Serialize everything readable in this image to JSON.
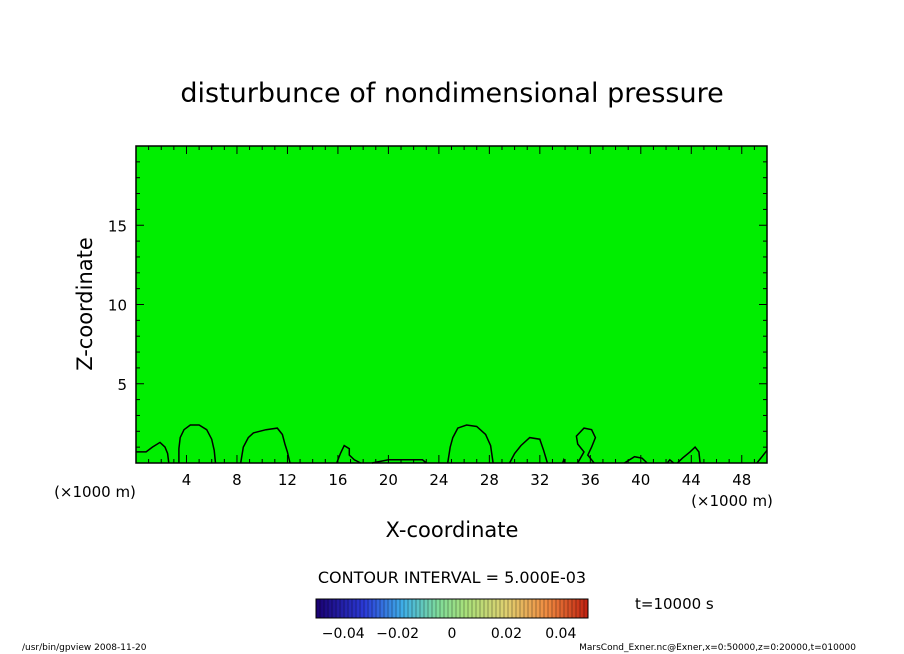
{
  "chart_data": {
    "type": "contour",
    "title": "disturbunce of nondimensional pressure",
    "xlabel": "X-coordinate",
    "ylabel": "Z-coordinate",
    "x_unit": "(×1000 m)",
    "y_unit": "(×1000 m)",
    "xlim": [
      0,
      50
    ],
    "ylim": [
      0,
      20
    ],
    "x_ticks": [
      "4",
      "8",
      "12",
      "16",
      "20",
      "24",
      "28",
      "32",
      "36",
      "40",
      "44",
      "48"
    ],
    "y_ticks": [
      "5",
      "10",
      "15"
    ],
    "fill_color": "#00ee00",
    "contour_interval_label": "CONTOUR INTERVAL = 5.000E-03",
    "time_label": "t=10000 s",
    "colorbar": {
      "range": [
        -0.05,
        0.05
      ],
      "tick_labels": [
        "−0.04",
        "−0.02",
        "0",
        "0.02",
        "0.04"
      ],
      "tick_values": [
        -0.04,
        -0.02,
        0,
        0.02,
        0.04
      ]
    },
    "contour_lines": [
      {
        "points": [
          [
            0,
            0.7
          ],
          [
            0.8,
            0.7
          ],
          [
            1.3,
            1.0
          ],
          [
            1.9,
            1.3
          ],
          [
            2.3,
            1.0
          ],
          [
            2.5,
            0.6
          ],
          [
            2.6,
            0
          ]
        ]
      },
      {
        "points": [
          [
            3.4,
            0
          ],
          [
            3.4,
            0.9
          ],
          [
            3.5,
            1.6
          ],
          [
            3.8,
            2.1
          ],
          [
            4.3,
            2.4
          ],
          [
            5.0,
            2.4
          ],
          [
            5.6,
            2.1
          ],
          [
            6.0,
            1.5
          ],
          [
            6.2,
            0.8
          ],
          [
            6.3,
            0
          ]
        ]
      },
      {
        "points": [
          [
            8.3,
            0
          ],
          [
            8.5,
            1.0
          ],
          [
            8.9,
            1.6
          ],
          [
            9.3,
            1.9
          ],
          [
            10.3,
            2.1
          ],
          [
            11.2,
            2.2
          ],
          [
            11.6,
            1.8
          ],
          [
            11.8,
            1.2
          ],
          [
            12.0,
            0.7
          ],
          [
            12.2,
            0
          ]
        ]
      },
      {
        "points": [
          [
            15.9,
            0
          ],
          [
            16.2,
            0.6
          ],
          [
            16.5,
            1.1
          ],
          [
            16.9,
            0.9
          ],
          [
            16.9,
            0.5
          ],
          [
            17.3,
            0.2
          ],
          [
            17.8,
            0
          ]
        ]
      },
      {
        "points": [
          [
            18.7,
            0
          ],
          [
            20.0,
            0.2
          ],
          [
            21.1,
            0.2
          ],
          [
            22.7,
            0.2
          ],
          [
            23.0,
            0
          ]
        ]
      },
      {
        "points": [
          [
            24.7,
            0
          ],
          [
            24.9,
            1.0
          ],
          [
            25.1,
            1.6
          ],
          [
            25.5,
            2.2
          ],
          [
            26.2,
            2.4
          ],
          [
            27.0,
            2.3
          ],
          [
            27.7,
            1.8
          ],
          [
            28.1,
            1.1
          ],
          [
            28.3,
            0
          ]
        ]
      },
      {
        "points": [
          [
            29.6,
            0
          ],
          [
            30.0,
            0.6
          ],
          [
            30.5,
            1.1
          ],
          [
            31.2,
            1.6
          ],
          [
            32.0,
            1.5
          ],
          [
            32.3,
            0.8
          ],
          [
            32.6,
            0
          ]
        ]
      },
      {
        "points": [
          [
            33.8,
            0
          ],
          [
            33.9,
            0.2
          ],
          [
            34.0,
            0
          ]
        ]
      },
      {
        "points": [
          [
            35.0,
            0
          ],
          [
            35.5,
            0.7
          ],
          [
            35.0,
            1.2
          ],
          [
            34.9,
            1.7
          ],
          [
            35.5,
            2.2
          ],
          [
            36.1,
            2.1
          ],
          [
            36.4,
            1.6
          ],
          [
            36.1,
            1.0
          ],
          [
            35.8,
            0.5
          ],
          [
            36.1,
            0.2
          ],
          [
            36.3,
            0
          ]
        ]
      },
      {
        "points": [
          [
            38.7,
            0
          ],
          [
            39.5,
            0.4
          ],
          [
            40.1,
            0.3
          ],
          [
            40.5,
            0
          ]
        ]
      },
      {
        "points": [
          [
            42.1,
            0
          ],
          [
            42.3,
            0.2
          ],
          [
            42.6,
            0
          ]
        ]
      },
      {
        "points": [
          [
            42.9,
            0
          ],
          [
            43.3,
            0.3
          ],
          [
            43.9,
            0.7
          ],
          [
            44.3,
            1.0
          ],
          [
            44.6,
            0.7
          ],
          [
            44.7,
            0
          ]
        ]
      },
      {
        "points": [
          [
            49.2,
            0
          ],
          [
            49.6,
            0.4
          ],
          [
            50,
            0.8
          ]
        ]
      }
    ]
  },
  "footer": {
    "left": "/usr/bin/gpview  2008-11-20",
    "right": "MarsCond_Exner.nc@Exner,x=0:50000,z=0:20000,t=010000"
  }
}
